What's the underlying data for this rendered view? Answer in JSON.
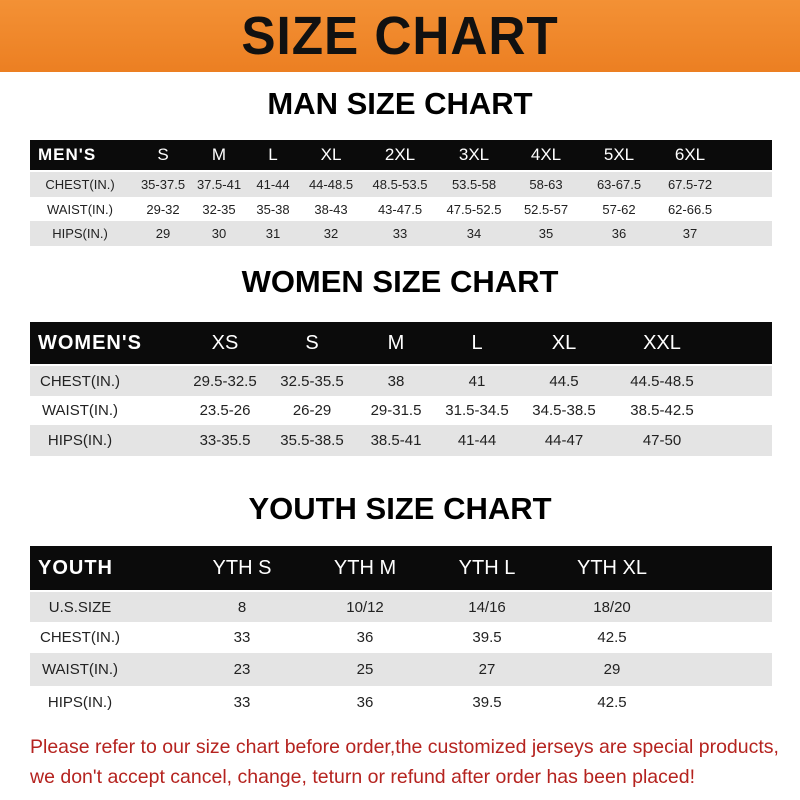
{
  "banner": {
    "title": "SIZE CHART"
  },
  "men": {
    "title": "MAN SIZE CHART",
    "header": [
      "MEN'S",
      "S",
      "M",
      "L",
      "XL",
      "2XL",
      "3XL",
      "4XL",
      "5XL",
      "6XL"
    ],
    "rows": [
      [
        "CHEST(IN.)",
        "35-37.5",
        "37.5-41",
        "41-44",
        "44-48.5",
        "48.5-53.5",
        "53.5-58",
        "58-63",
        "63-67.5",
        "67.5-72"
      ],
      [
        "WAIST(IN.)",
        "29-32",
        "32-35",
        "35-38",
        "38-43",
        "43-47.5",
        "47.5-52.5",
        "52.5-57",
        "57-62",
        "62-66.5"
      ],
      [
        "HIPS(IN.)",
        "29",
        "30",
        "31",
        "32",
        "33",
        "34",
        "35",
        "36",
        "37"
      ]
    ]
  },
  "women": {
    "title": "WOMEN SIZE CHART",
    "header": [
      "WOMEN'S",
      "XS",
      "S",
      "M",
      "L",
      "XL",
      "XXL"
    ],
    "rows": [
      [
        "CHEST(IN.)",
        "29.5-32.5",
        "32.5-35.5",
        "38",
        "41",
        "44.5",
        "44.5-48.5"
      ],
      [
        "WAIST(IN.)",
        "23.5-26",
        "26-29",
        "29-31.5",
        "31.5-34.5",
        "34.5-38.5",
        "38.5-42.5"
      ],
      [
        "HIPS(IN.)",
        "33-35.5",
        "35.5-38.5",
        "38.5-41",
        "41-44",
        "44-47",
        "47-50"
      ]
    ]
  },
  "youth": {
    "title": "YOUTH SIZE CHART",
    "header": [
      "YOUTH",
      "YTH S",
      "YTH M",
      "YTH L",
      "YTH XL"
    ],
    "rows": [
      [
        "U.S.SIZE",
        "8",
        "10/12",
        "14/16",
        "18/20"
      ],
      [
        "CHEST(IN.)",
        "33",
        "36",
        "39.5",
        "42.5"
      ],
      [
        "WAIST(IN.)",
        "23",
        "25",
        "27",
        "29"
      ],
      [
        "HIPS(IN.)",
        "33",
        "36",
        "39.5",
        "42.5"
      ]
    ]
  },
  "footer": {
    "line1": "Please refer to our size chart before order,the customized jerseys are special products,",
    "line2": "we don't accept cancel, change, teturn or refund after order has been placed!"
  },
  "colors": {
    "banner": "#ef8a2c",
    "header_row": "#0b0b0b",
    "stripe": "#e4e4e4",
    "notice": "#b5231f"
  }
}
